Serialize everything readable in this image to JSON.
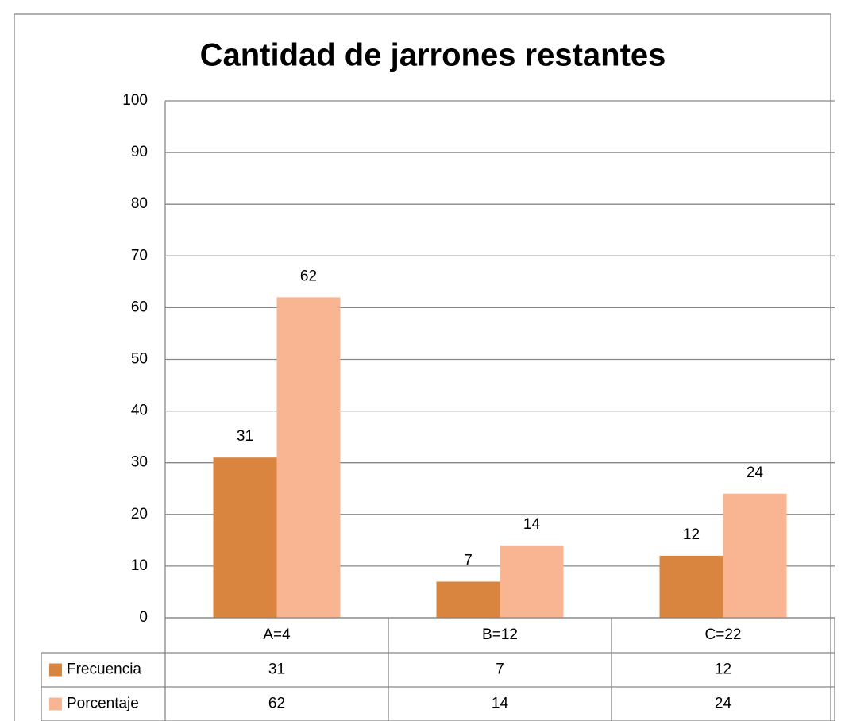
{
  "chart_data": {
    "type": "bar",
    "title": "Cantidad de jarrones restantes",
    "categories": [
      "A=4",
      "B=12",
      "C=22"
    ],
    "series": [
      {
        "name": "Frecuencia",
        "color": "#d9843f",
        "values": [
          31,
          7,
          12
        ]
      },
      {
        "name": "Porcentaje",
        "color": "#f9b592",
        "values": [
          62,
          14,
          24
        ]
      }
    ],
    "ylim": [
      0,
      100
    ],
    "yticks": [
      0,
      10,
      20,
      30,
      40,
      50,
      60,
      70,
      80,
      90,
      100
    ],
    "grid": true,
    "legend": "data-table"
  }
}
